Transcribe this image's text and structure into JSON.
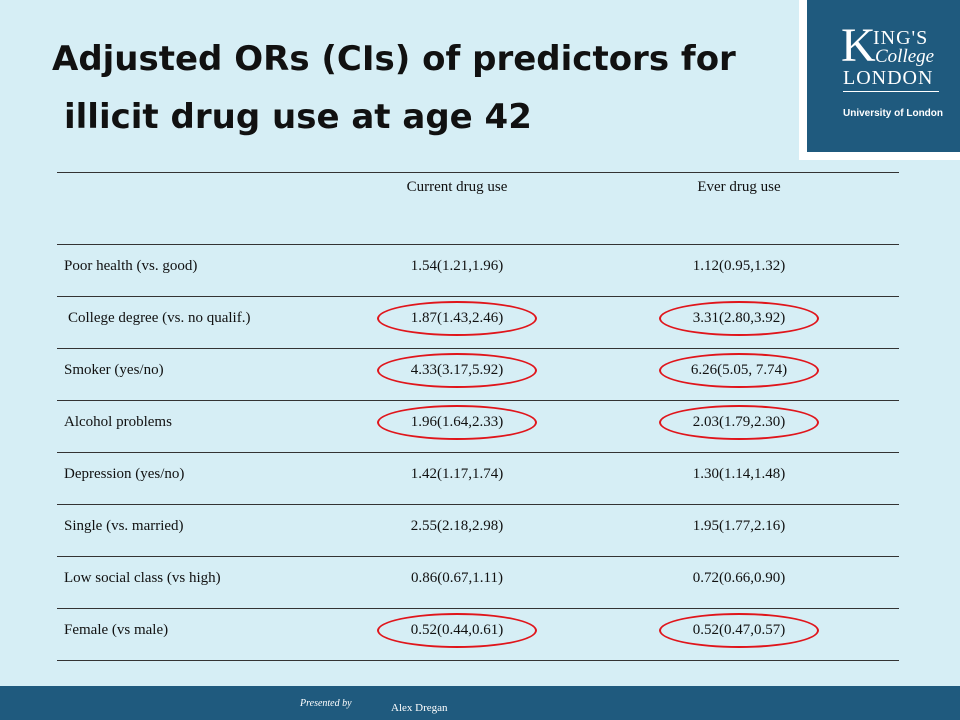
{
  "slide": {
    "title_line1": "Adjusted ORs (CIs) of predictors for",
    "title_line2": "illicit drug use at age 42"
  },
  "logo": {
    "k": "K",
    "ings": "ING'S",
    "college": "College",
    "london": "LONDON",
    "university": "University of London"
  },
  "table": {
    "headers": [
      "",
      "Current drug use",
      "Ever drug use"
    ],
    "rows": [
      {
        "predictor": "Poor health (vs. good)",
        "current": "1.54(1.21,1.96)",
        "ever": "1.12(0.95,1.32)"
      },
      {
        "predictor": "College degree (vs. no qualif.)",
        "current": "1.87(1.43,2.46)",
        "ever": "3.31(2.80,3.92)"
      },
      {
        "predictor": "Smoker (yes/no)",
        "current": "4.33(3.17,5.92)",
        "ever": "6.26(5.05, 7.74)"
      },
      {
        "predictor": "Alcohol problems",
        "current": "1.96(1.64,2.33)",
        "ever": "2.03(1.79,2.30)"
      },
      {
        "predictor": "Depression (yes/no)",
        "current": "1.42(1.17,1.74)",
        "ever": "1.30(1.14,1.48)"
      },
      {
        "predictor": "Single (vs. married)",
        "current": "2.55(2.18,2.98)",
        "ever": "1.95(1.77,2.16)"
      },
      {
        "predictor": "Low social class (vs high)",
        "current": "0.86(0.67,1.11)",
        "ever": "0.72(0.66,0.90)"
      },
      {
        "predictor": "Female (vs male)",
        "current": "0.52(0.44,0.61)",
        "ever": "0.52(0.47,0.57)"
      }
    ]
  },
  "footer": {
    "presented_by": "Presented by",
    "presenter": "Alex Dregan"
  },
  "colors": {
    "background": "#d6eef5",
    "brand": "#1f5a7e",
    "highlight": "#e0151b"
  }
}
